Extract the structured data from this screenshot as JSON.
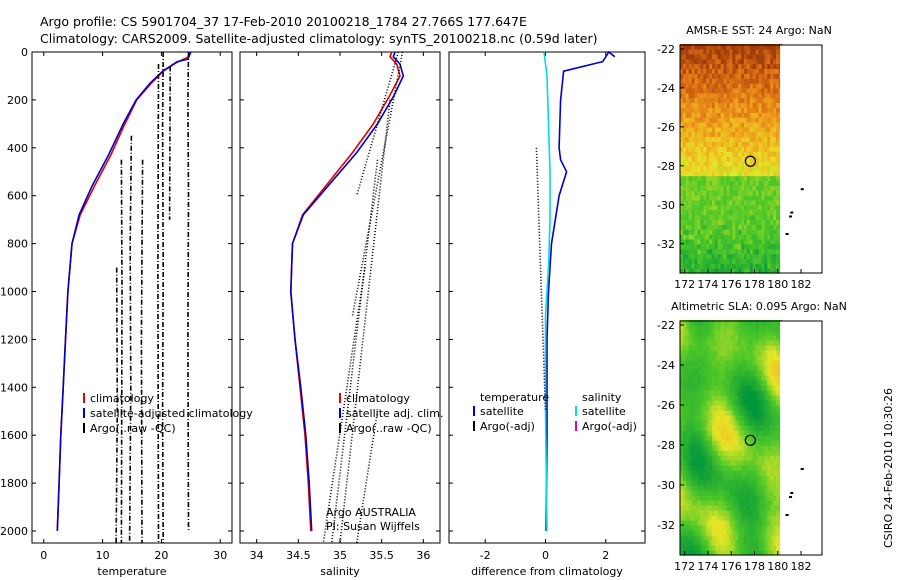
{
  "header": {
    "line1": "Argo profile: CS 5901704_37 17-Feb-2010 20100218_1784 27.766S 177.647E",
    "line2": "Climatology: CARS2009. Satellite-adjusted climatology: synTS_20100218.nc (0.59d later)"
  },
  "side_label": "CSIRO 24-Feb-2010 10:30:26",
  "colors": {
    "climatology": "#e00000",
    "satellite": "#0000cc",
    "argo": "#000000",
    "cyan": "#00e0e0",
    "magenta": "#d000d0"
  },
  "chart_data": [
    {
      "type": "line",
      "xlabel": "temperature",
      "xlim": [
        -2,
        32
      ],
      "ylim": [
        2050,
        0
      ],
      "xticks": [
        0,
        10,
        20,
        30
      ],
      "yticks": [
        0,
        200,
        400,
        600,
        800,
        1000,
        1200,
        1400,
        1600,
        1800,
        2000
      ],
      "legend": [
        "climatology",
        "satellite-adjusted climatology",
        "Argo(..raw -QC)"
      ],
      "series": [
        {
          "name": "climatology",
          "color": "#e00000",
          "points": [
            [
              2.3,
              2000
            ],
            [
              2.6,
              1800
            ],
            [
              2.9,
              1600
            ],
            [
              3.3,
              1400
            ],
            [
              3.7,
              1200
            ],
            [
              4.1,
              1000
            ],
            [
              4.8,
              800
            ],
            [
              6.2,
              680
            ],
            [
              8.6,
              560
            ],
            [
              11.4,
              430
            ],
            [
              13.8,
              300
            ],
            [
              15.8,
              200
            ],
            [
              18.3,
              130
            ],
            [
              20.3,
              80
            ],
            [
              22.5,
              45
            ],
            [
              24.6,
              20
            ],
            [
              25.0,
              0
            ]
          ]
        },
        {
          "name": "satellite-adjusted climatology",
          "color": "#0000cc",
          "points": [
            [
              2.3,
              2000
            ],
            [
              2.6,
              1800
            ],
            [
              2.9,
              1600
            ],
            [
              3.3,
              1400
            ],
            [
              3.7,
              1200
            ],
            [
              4.1,
              1000
            ],
            [
              4.8,
              800
            ],
            [
              6.0,
              680
            ],
            [
              8.2,
              560
            ],
            [
              11.0,
              430
            ],
            [
              13.5,
              300
            ],
            [
              15.7,
              200
            ],
            [
              18.1,
              130
            ],
            [
              20.2,
              80
            ],
            [
              22.7,
              40
            ],
            [
              24.5,
              30
            ],
            [
              25.0,
              0
            ]
          ]
        },
        {
          "name": "Argo(..raw -QC)",
          "color": "#000000",
          "dash": "5,2,1,2",
          "points": [
            [
              24.6,
              0
            ],
            [
              24.5,
              200
            ],
            [
              24.6,
              600
            ],
            [
              24.5,
              1200
            ],
            [
              24.6,
              2000
            ]
          ]
        },
        {
          "name": "Argo(..raw -QC)",
          "color": "#000000",
          "dash": "5,2,1,2",
          "points": [
            [
              20.3,
              0
            ],
            [
              20.2,
              300
            ],
            [
              20.3,
              900
            ],
            [
              20.2,
              1500
            ],
            [
              20.3,
              2050
            ]
          ]
        },
        {
          "name": "Argo(..raw -QC)",
          "color": "#000000",
          "dash": "5,2,1,2",
          "points": [
            [
              14.9,
              350
            ],
            [
              14.7,
              800
            ],
            [
              14.8,
              1400
            ],
            [
              14.6,
              2050
            ]
          ]
        },
        {
          "name": "Argo(..raw -QC)",
          "color": "#000000",
          "dash": "5,2,1,2",
          "points": [
            [
              13.2,
              450
            ],
            [
              13.3,
              1000
            ],
            [
              13.2,
              2050
            ]
          ]
        },
        {
          "name": "Argo(..raw -QC)",
          "color": "#000000",
          "dash": "5,2,1,2",
          "points": [
            [
              12.4,
              900
            ],
            [
              12.5,
              1500
            ],
            [
              12.3,
              2050
            ]
          ]
        },
        {
          "name": "Argo(..raw -QC)",
          "color": "#000000",
          "dash": "5,2,1,2",
          "points": [
            [
              16.8,
              450
            ],
            [
              16.6,
              1200
            ],
            [
              16.7,
              2050
            ]
          ]
        },
        {
          "name": "Argo(..raw -QC)",
          "color": "#000000",
          "dash": "5,2,1,2",
          "points": [
            [
              19.5,
              50
            ],
            [
              19.4,
              900
            ],
            [
              19.5,
              2050
            ]
          ]
        },
        {
          "name": "Argo(..raw -QC)",
          "color": "#000000",
          "dash": "5,2,1,2",
          "points": [
            [
              21.5,
              60
            ],
            [
              21.4,
              700
            ]
          ]
        }
      ]
    },
    {
      "type": "line",
      "xlabel": "salinity",
      "xlim": [
        33.8,
        36.2
      ],
      "ylim": [
        2050,
        0
      ],
      "xticks": [
        34,
        34.5,
        35,
        35.5,
        36
      ],
      "legend": [
        "climatology",
        "satellite adj. clim.",
        "Argo(..raw -QC)"
      ],
      "annotations": [
        "Argo AUSTRALIA",
        "PI: Susan Wijffels"
      ],
      "series": [
        {
          "name": "climatology",
          "color": "#e00000",
          "points": [
            [
              34.65,
              2000
            ],
            [
              34.62,
              1800
            ],
            [
              34.58,
              1600
            ],
            [
              34.52,
              1400
            ],
            [
              34.46,
              1200
            ],
            [
              34.41,
              1000
            ],
            [
              34.43,
              800
            ],
            [
              34.55,
              680
            ],
            [
              34.85,
              550
            ],
            [
              35.15,
              420
            ],
            [
              35.4,
              300
            ],
            [
              35.6,
              180
            ],
            [
              35.72,
              100
            ],
            [
              35.68,
              50
            ],
            [
              35.6,
              20
            ],
            [
              35.62,
              0
            ]
          ]
        },
        {
          "name": "satellite adj. clim.",
          "color": "#0000cc",
          "points": [
            [
              34.66,
              2000
            ],
            [
              34.63,
              1800
            ],
            [
              34.59,
              1600
            ],
            [
              34.53,
              1400
            ],
            [
              34.46,
              1200
            ],
            [
              34.41,
              1000
            ],
            [
              34.43,
              800
            ],
            [
              34.56,
              680
            ],
            [
              34.88,
              550
            ],
            [
              35.2,
              420
            ],
            [
              35.45,
              300
            ],
            [
              35.65,
              180
            ],
            [
              35.76,
              100
            ],
            [
              35.72,
              50
            ],
            [
              35.64,
              20
            ],
            [
              35.66,
              0
            ]
          ]
        },
        {
          "name": "Argo(..raw -QC)",
          "color": "#000000",
          "dash": "1,2",
          "points": [
            [
              35.3,
              900
            ],
            [
              34.8,
              2050
            ]
          ]
        },
        {
          "name": "Argo(..raw -QC)",
          "color": "#000000",
          "dash": "1,2",
          "points": [
            [
              35.45,
              450
            ],
            [
              34.9,
              2050
            ]
          ]
        },
        {
          "name": "Argo(..raw -QC)",
          "color": "#000000",
          "dash": "1,2",
          "points": [
            [
              35.6,
              200
            ],
            [
              35.0,
              2050
            ]
          ]
        },
        {
          "name": "Argo(..raw -QC)",
          "color": "#000000",
          "dash": "1,2",
          "points": [
            [
              35.75,
              0
            ],
            [
              35.15,
              1100
            ]
          ]
        },
        {
          "name": "Argo(..raw -QC)",
          "color": "#000000",
          "dash": "1,2",
          "points": [
            [
              35.7,
              0
            ],
            [
              35.2,
              600
            ]
          ]
        },
        {
          "name": "Argo(..raw -QC)",
          "color": "#000000",
          "dash": "1,2",
          "points": [
            [
              35.45,
              1500
            ],
            [
              35.2,
              2050
            ]
          ]
        }
      ]
    },
    {
      "type": "line",
      "xlabel": "difference from climatology",
      "xlim": [
        -3.2,
        3.3
      ],
      "ylim": [
        2050,
        0
      ],
      "xticks": [
        -2,
        0,
        2
      ],
      "legend": [
        {
          "group": "temperature",
          "entries": [
            "satellite",
            "Argo(-adj)"
          ]
        },
        {
          "group": "salinity",
          "entries": [
            "satellite",
            "Argo(-adj)"
          ]
        }
      ],
      "series": [
        {
          "name": "satellite",
          "group": "temperature",
          "color": "#0000cc",
          "points": [
            [
              2.3,
              20
            ],
            [
              2.1,
              0
            ],
            [
              1.9,
              40
            ],
            [
              0.6,
              80
            ],
            [
              0.5,
              200
            ],
            [
              0.45,
              400
            ],
            [
              0.5,
              450
            ],
            [
              0.7,
              500
            ],
            [
              0.45,
              600
            ],
            [
              0.2,
              800
            ],
            [
              0.1,
              1000
            ],
            [
              0.05,
              1200
            ],
            [
              0.05,
              1600
            ],
            [
              0.02,
              2000
            ]
          ]
        },
        {
          "name": "satellite",
          "group": "salinity",
          "color": "#00dddd",
          "points": [
            [
              -0.05,
              0
            ],
            [
              0.05,
              100
            ],
            [
              0.1,
              300
            ],
            [
              0.15,
              500
            ],
            [
              0.15,
              700
            ],
            [
              0.1,
              900
            ],
            [
              0.0,
              1100
            ],
            [
              0.0,
              1500
            ],
            [
              0.05,
              2000
            ]
          ]
        },
        {
          "name": "Argo(-adj)",
          "group": "temperature",
          "color": "#000000",
          "dash": "1,2",
          "points": [
            [
              -0.3,
              400
            ],
            [
              0.0,
              1500
            ]
          ]
        }
      ]
    },
    {
      "type": "heatmap",
      "title": "AMSR-E SST: 24 Argo: NaN",
      "xlim": [
        171.6,
        183.8
      ],
      "ylim": [
        -33.5,
        -21.8
      ],
      "xticks": [
        172,
        174,
        176,
        178,
        180,
        182
      ],
      "yticks": [
        -22,
        -24,
        -26,
        -28,
        -30,
        -32
      ],
      "marker": {
        "lon": 177.647,
        "lat": -27.766
      }
    },
    {
      "type": "heatmap",
      "title": "Altimetric SLA: 0.095 Argo: NaN",
      "xlim": [
        171.6,
        183.8
      ],
      "ylim": [
        -33.5,
        -21.8
      ],
      "xticks": [
        172,
        174,
        176,
        178,
        180,
        182
      ],
      "yticks": [
        -22,
        -24,
        -26,
        -28,
        -30,
        -32
      ],
      "marker": {
        "lon": 177.647,
        "lat": -27.766
      }
    }
  ]
}
